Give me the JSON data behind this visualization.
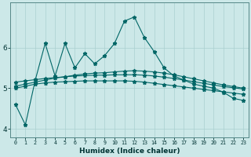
{
  "xlabel": "Humidex (Indice chaleur)",
  "background_color": "#cce8e8",
  "grid_color": "#aad0d0",
  "line_color": "#006666",
  "xlim": [
    -0.5,
    23.5
  ],
  "ylim": [
    3.8,
    7.1
  ],
  "yticks": [
    4,
    5,
    6
  ],
  "xticks": [
    0,
    1,
    2,
    3,
    4,
    5,
    6,
    7,
    8,
    9,
    10,
    11,
    12,
    13,
    14,
    15,
    16,
    17,
    18,
    19,
    20,
    21,
    22,
    23
  ],
  "s1_x": [
    0,
    1,
    2,
    3,
    4,
    5,
    6,
    7,
    8,
    9,
    10,
    11,
    12,
    13,
    14,
    15,
    16,
    17,
    18,
    19,
    20,
    21,
    22,
    23
  ],
  "s1_y": [
    4.6,
    4.1,
    5.2,
    6.1,
    5.3,
    6.1,
    5.5,
    5.85,
    5.6,
    5.8,
    6.1,
    6.65,
    6.75,
    6.25,
    5.9,
    5.5,
    5.3,
    5.2,
    5.1,
    5.05,
    5.0,
    4.9,
    4.75,
    4.7
  ],
  "s2_x": [
    0,
    1,
    2,
    3,
    4,
    5,
    6,
    7,
    8,
    9,
    10,
    11,
    12,
    13,
    14,
    15,
    16,
    17,
    18,
    19,
    20,
    21,
    22,
    23
  ],
  "s2_y": [
    5.05,
    5.1,
    5.15,
    5.2,
    5.25,
    5.28,
    5.32,
    5.35,
    5.37,
    5.38,
    5.4,
    5.42,
    5.43,
    5.42,
    5.4,
    5.37,
    5.33,
    5.28,
    5.23,
    5.18,
    5.13,
    5.08,
    5.04,
    5.0
  ],
  "s3_x": [
    0,
    1,
    2,
    3,
    4,
    5,
    6,
    7,
    8,
    9,
    10,
    11,
    12,
    13,
    14,
    15,
    16,
    17,
    18,
    19,
    20,
    21,
    22,
    23
  ],
  "s3_y": [
    5.15,
    5.18,
    5.21,
    5.24,
    5.26,
    5.28,
    5.3,
    5.31,
    5.32,
    5.32,
    5.33,
    5.33,
    5.33,
    5.32,
    5.3,
    5.27,
    5.24,
    5.2,
    5.16,
    5.12,
    5.08,
    5.04,
    5.01,
    4.98
  ],
  "s4_x": [
    0,
    1,
    2,
    3,
    4,
    5,
    6,
    7,
    8,
    9,
    10,
    11,
    12,
    13,
    14,
    15,
    16,
    17,
    18,
    19,
    20,
    21,
    22,
    23
  ],
  "s4_y": [
    5.0,
    5.05,
    5.1,
    5.13,
    5.15,
    5.16,
    5.17,
    5.18,
    5.18,
    5.18,
    5.18,
    5.18,
    5.17,
    5.15,
    5.12,
    5.09,
    5.06,
    5.03,
    5.0,
    4.97,
    4.94,
    4.91,
    4.88,
    4.85
  ]
}
